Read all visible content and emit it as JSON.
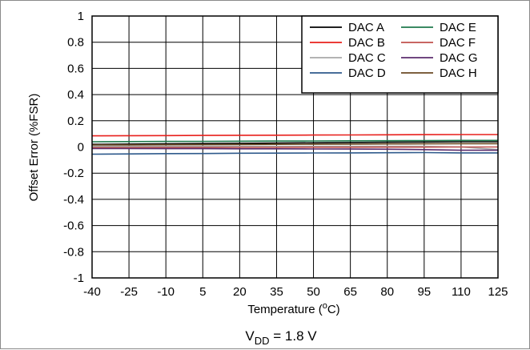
{
  "chart_data": {
    "type": "line",
    "xlabel": "Temperature (",
    "xlabel_degree": "o",
    "xlabel_unit": "C)",
    "ylabel": "Offset Error (%FSR)",
    "caption_main": "V",
    "caption_sub": "DD",
    "caption_rest": " = 1.8 V",
    "xlim": [
      -40,
      125
    ],
    "ylim": [
      -1,
      1
    ],
    "x_ticks": [
      -40,
      -25,
      -10,
      5,
      20,
      35,
      50,
      65,
      80,
      95,
      110,
      125
    ],
    "x_tick_labels": [
      "-40",
      "-25",
      "-10",
      "5",
      "20",
      "35",
      "50",
      "65",
      "80",
      "95",
      "110",
      "125"
    ],
    "y_ticks": [
      -1,
      -0.8,
      -0.6,
      -0.4,
      -0.2,
      0,
      0.2,
      0.4,
      0.6,
      0.8,
      1
    ],
    "y_tick_labels": [
      "-1",
      "-0.8",
      "-0.6",
      "-0.4",
      "-0.2",
      "0",
      "0.2",
      "0.4",
      "0.6",
      "0.8",
      "1"
    ],
    "grid": true,
    "legend_position": "top-right",
    "x": [
      -40,
      -25,
      -10,
      5,
      20,
      35,
      50,
      65,
      80,
      95,
      110,
      125
    ],
    "series": [
      {
        "name": "DAC A",
        "color": "#000000",
        "values": [
          0.02,
          0.022,
          0.024,
          0.026,
          0.028,
          0.03,
          0.032,
          0.034,
          0.036,
          0.038,
          0.04,
          0.04
        ]
      },
      {
        "name": "DAC B",
        "color": "#e8201c",
        "values": [
          0.085,
          0.086,
          0.087,
          0.088,
          0.089,
          0.09,
          0.091,
          0.092,
          0.093,
          0.094,
          0.095,
          0.095
        ]
      },
      {
        "name": "DAC C",
        "color": "#a8a8a8",
        "values": [
          0.005,
          0.005,
          0.005,
          0.005,
          0.005,
          0.005,
          0.005,
          0.005,
          0.005,
          0.005,
          0.0,
          -0.02
        ]
      },
      {
        "name": "DAC D",
        "color": "#2e5a8c",
        "values": [
          -0.055,
          -0.053,
          -0.051,
          -0.05,
          -0.048,
          -0.047,
          -0.046,
          -0.045,
          -0.044,
          -0.043,
          -0.045,
          -0.045
        ]
      },
      {
        "name": "DAC E",
        "color": "#1f7a4d",
        "values": [
          0.04,
          0.041,
          0.042,
          0.043,
          0.044,
          0.045,
          0.046,
          0.047,
          0.048,
          0.049,
          0.05,
          0.05
        ]
      },
      {
        "name": "DAC F",
        "color": "#c0504d",
        "values": [
          -0.005,
          -0.005,
          -0.004,
          -0.004,
          -0.003,
          -0.003,
          -0.002,
          -0.002,
          -0.001,
          -0.001,
          0.0,
          0.0
        ]
      },
      {
        "name": "DAC G",
        "color": "#5b2d6e",
        "values": [
          -0.012,
          -0.012,
          -0.013,
          -0.013,
          -0.014,
          -0.014,
          -0.015,
          -0.016,
          -0.017,
          -0.02,
          -0.025,
          -0.025
        ]
      },
      {
        "name": "DAC H",
        "color": "#6b4a24",
        "values": [
          0.015,
          0.016,
          0.017,
          0.018,
          0.019,
          0.02,
          0.021,
          0.022,
          0.023,
          0.024,
          0.025,
          0.025
        ]
      }
    ]
  }
}
